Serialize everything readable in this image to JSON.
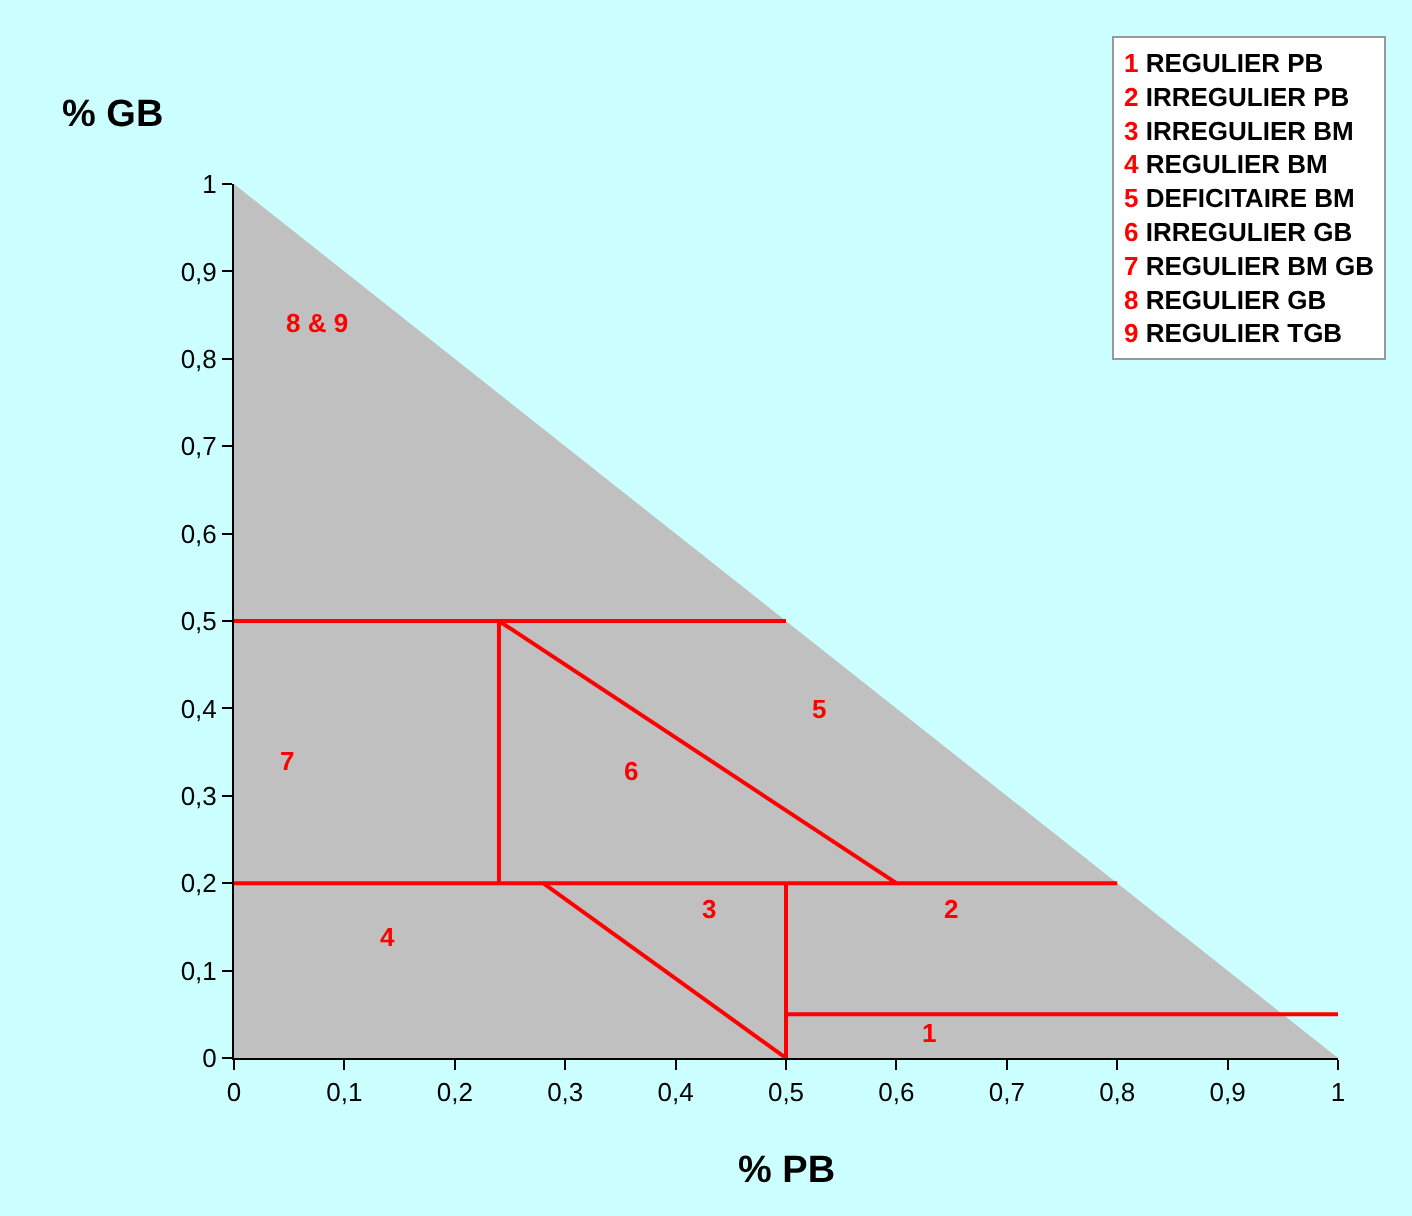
{
  "chart_data": {
    "type": "line",
    "xlabel": "% PB",
    "ylabel": "% GB",
    "xlim": [
      0,
      1
    ],
    "ylim": [
      0,
      1
    ],
    "xticks": [
      0,
      {
        "value": 0.1,
        "label": "0,1"
      },
      {
        "value": 0.2,
        "label": "0,2"
      },
      {
        "value": 0.3,
        "label": "0,3"
      },
      {
        "value": 0.4,
        "label": "0,4"
      },
      {
        "value": 0.5,
        "label": "0,5"
      },
      {
        "value": 0.6,
        "label": "0,6"
      },
      {
        "value": 0.7,
        "label": "0,7"
      },
      {
        "value": 0.8,
        "label": "0,8"
      },
      {
        "value": 0.9,
        "label": "0,9"
      },
      1
    ],
    "yticks": [
      0,
      {
        "value": 0.1,
        "label": "0,1"
      },
      {
        "value": 0.2,
        "label": "0,2"
      },
      {
        "value": 0.3,
        "label": "0,3"
      },
      {
        "value": 0.4,
        "label": "0,4"
      },
      {
        "value": 0.5,
        "label": "0,5"
      },
      {
        "value": 0.6,
        "label": "0,6"
      },
      {
        "value": 0.7,
        "label": "0,7"
      },
      {
        "value": 0.8,
        "label": "0,8"
      },
      {
        "value": 0.9,
        "label": "0,9"
      },
      1
    ],
    "grid": false,
    "marker": "none",
    "line_style": "solid",
    "series": [
      {
        "type": "area",
        "color": "#c0c0c0",
        "x": [
          0,
          1
        ],
        "values": [
          1,
          0
        ]
      },
      {
        "color": "#ff0000",
        "x": [
          0,
          0.5
        ],
        "values": [
          0.5,
          0.5
        ]
      },
      {
        "color": "#ff0000",
        "x": [
          0.24,
          0.24
        ],
        "values": [
          0.2,
          0.5
        ]
      },
      {
        "color": "#ff0000",
        "x": [
          0.24,
          0.6
        ],
        "values": [
          0.5,
          0.2
        ]
      },
      {
        "color": "#ff0000",
        "x": [
          0,
          0.8
        ],
        "values": [
          0.2,
          0.2
        ]
      },
      {
        "color": "#ff0000",
        "x": [
          0.28,
          0.5
        ],
        "values": [
          0.2,
          0
        ]
      },
      {
        "color": "#ff0000",
        "x": [
          0.5,
          0.5
        ],
        "values": [
          0,
          0.2
        ]
      },
      {
        "color": "#ff0000",
        "x": [
          0.5,
          1
        ],
        "values": [
          0.05,
          0.05
        ]
      }
    ],
    "annotations": [
      "8 & 9",
      "7",
      "4",
      "6",
      "3",
      "5",
      "2",
      "1",
      "1 REGULIER PB",
      "2 IRREGULIER PB",
      "3 IRREGULIER BM",
      "4 REGULIER BM",
      "5 DEFICITAIRE BM",
      "6 IRREGULIER GB",
      "7 REGULIER BM GB",
      "8 REGULIER GB",
      "9 REGULIER TGB"
    ]
  }
}
